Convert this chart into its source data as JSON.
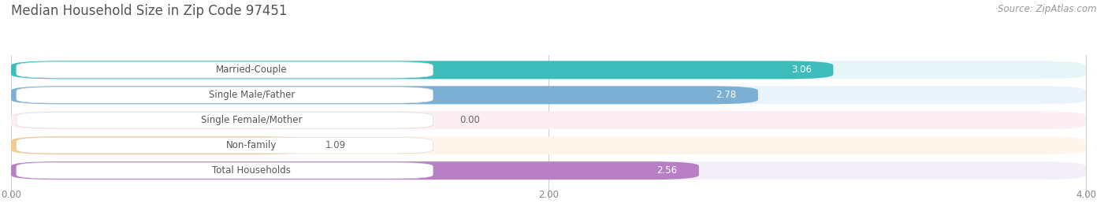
{
  "title": "Median Household Size in Zip Code 97451",
  "source": "Source: ZipAtlas.com",
  "categories": [
    "Married-Couple",
    "Single Male/Father",
    "Single Female/Mother",
    "Non-family",
    "Total Households"
  ],
  "values": [
    3.06,
    2.78,
    0.0,
    1.09,
    2.56
  ],
  "bar_colors": [
    "#3dbcbc",
    "#7bafd4",
    "#f499b0",
    "#f5c98a",
    "#b87fc4"
  ],
  "bar_bg_colors": [
    "#e6f6f6",
    "#eaf2fb",
    "#fceef3",
    "#fef6ea",
    "#f4eef8"
  ],
  "xlim": [
    0,
    4.0
  ],
  "xticks": [
    0.0,
    2.0,
    4.0
  ],
  "xtick_labels": [
    "0.00",
    "2.00",
    "4.00"
  ],
  "title_fontsize": 12,
  "label_fontsize": 8.5,
  "value_fontsize": 8.5,
  "source_fontsize": 8.5,
  "bg_color": "#ffffff",
  "chart_bg": "#f5f5f5"
}
